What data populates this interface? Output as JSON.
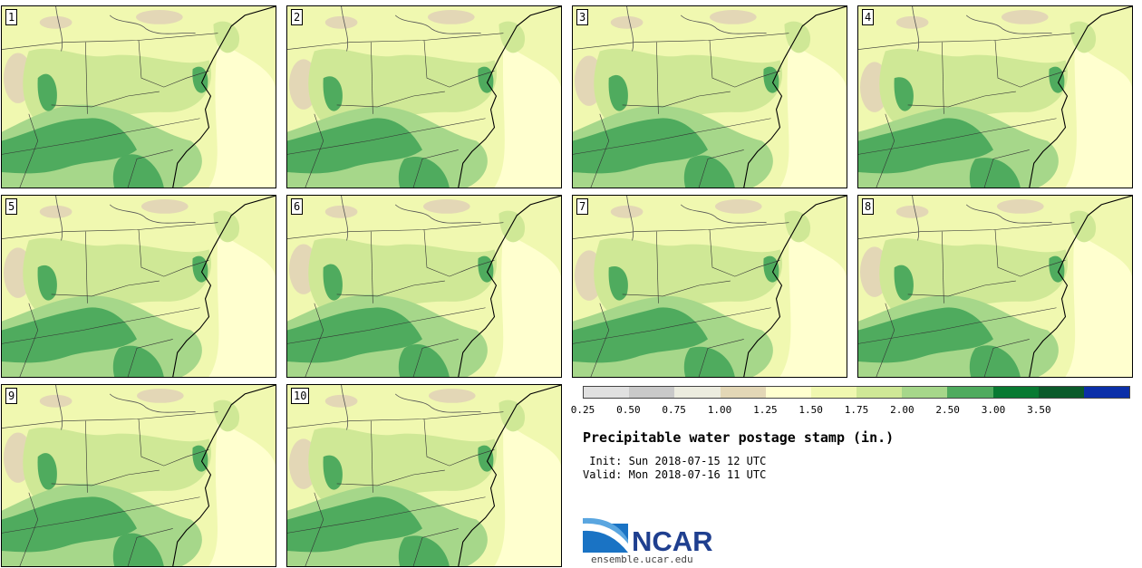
{
  "title": "Precipitable water postage stamp (in.)",
  "init_label": " Init:",
  "init_time": "Sun 2018-07-15 12 UTC",
  "valid_label": "Valid:",
  "valid_time": "Mon 2018-07-16 11 UTC",
  "members": [
    "1",
    "2",
    "3",
    "4",
    "5",
    "6",
    "7",
    "8",
    "9",
    "10"
  ],
  "colorbar": {
    "ticks": [
      "0.25",
      "0.50",
      "0.75",
      "1.00",
      "1.25",
      "1.50",
      "1.75",
      "2.00",
      "2.50",
      "3.00",
      "3.50"
    ],
    "colors": [
      "#e0e0e0",
      "#c9c9c9",
      "#ececdf",
      "#e3d7b6",
      "#ffffcf",
      "#f0f8b0",
      "#cfe896",
      "#a6d78a",
      "#4fab5e",
      "#087a32",
      "#0a5a2a",
      "#0b2fa8"
    ]
  },
  "logo": {
    "text": "NCAR",
    "url": "ensemble.ucar.edu"
  }
}
